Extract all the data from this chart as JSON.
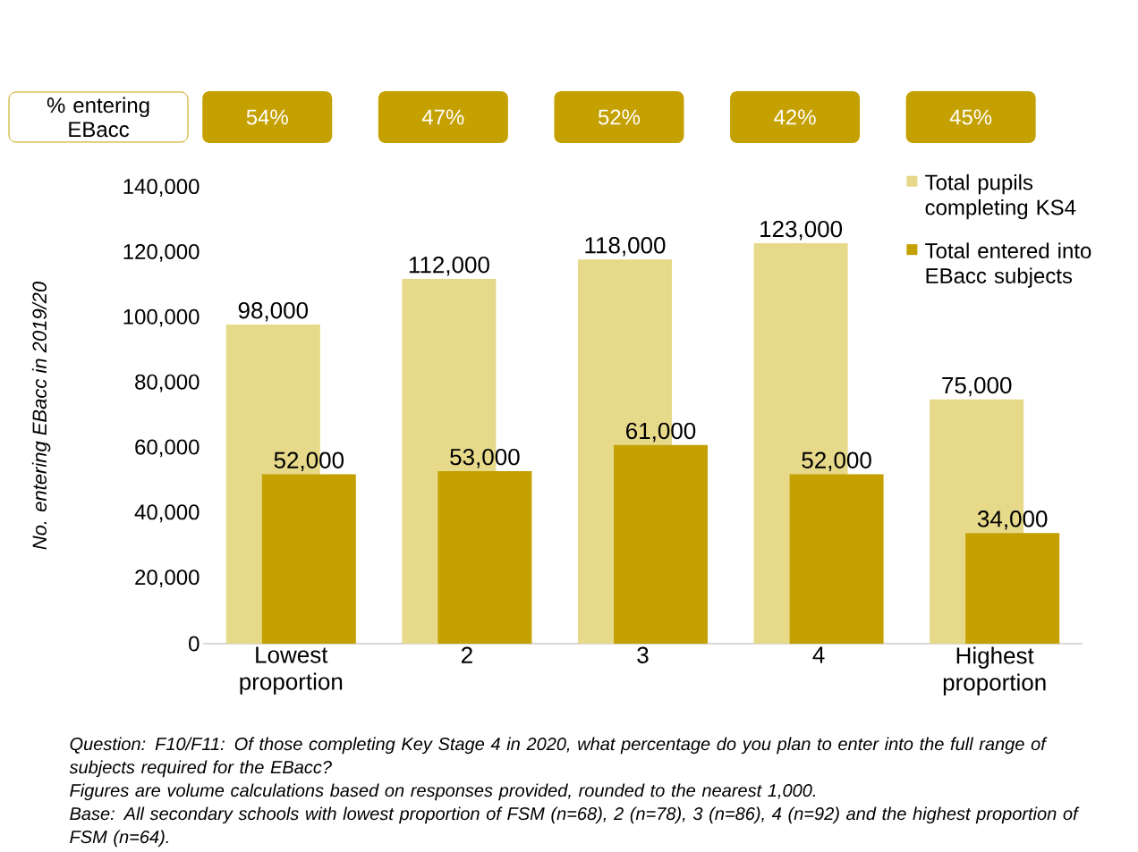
{
  "chart_data": {
    "type": "bar",
    "ylabel": "No. entering EBacc in 2019/20",
    "categories": [
      "Lowest proportion",
      "2",
      "3",
      "4",
      "Highest proportion"
    ],
    "series": [
      {
        "name": "Total pupils completing KS4",
        "color": "#e6d98a",
        "values": [
          98000,
          112000,
          118000,
          123000,
          75000
        ],
        "value_labels": [
          "98,000",
          "112,000",
          "118,000",
          "123,000",
          "75,000"
        ]
      },
      {
        "name": "Total entered into EBacc subjects",
        "color": "#c4a000",
        "values": [
          52000,
          53000,
          61000,
          52000,
          34000
        ],
        "value_labels": [
          "52,000",
          "53,000",
          "61,000",
          "52,000",
          "34,000"
        ]
      }
    ],
    "ylim": [
      0,
      140000
    ],
    "yticks": [
      0,
      {
        "value": 20000,
        "label": "20,000"
      },
      {
        "value": 40000,
        "label": "40,000"
      },
      {
        "value": 60000,
        "label": "60,000"
      },
      {
        "value": 80000,
        "label": "80,000"
      },
      {
        "value": 100000,
        "label": "100,000"
      },
      {
        "value": 120000,
        "label": "120,000"
      },
      {
        "value": 140000,
        "label": "140,000"
      }
    ],
    "legend": "top right",
    "grid": false,
    "annotations": [
      "% entering EBacc",
      "54%",
      "47%",
      "52%",
      "42%",
      "45%",
      "Question: F10/F11: Of those completing Key Stage 4 in 2020, what percentage do you plan to enter into the full range of subjects required for the EBacc?",
      "Figures are volume calculations based on responses provided, rounded to the nearest 1,000.",
      "Base: All secondary schools with lowest proportion of FSM (n=68), 2 (n=78), 3 (n=86), 4 (n=92) and the highest proportion of FSM (n=64)."
    ]
  }
}
